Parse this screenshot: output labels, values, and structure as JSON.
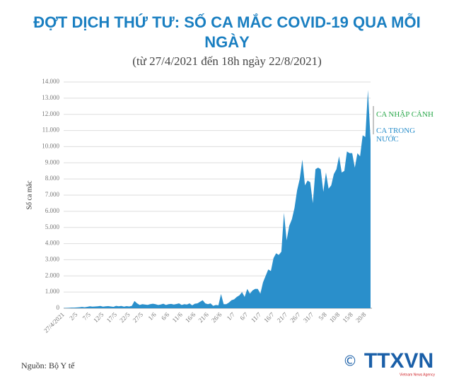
{
  "chart_data": {
    "type": "area",
    "title": "ĐỢT DỊCH THỨ TƯ: SỐ CA MẮC COVID-19 QUA MỖI NGÀY",
    "subtitle": "(từ 27/4/2021 đến 18h ngày 22/8/2021)",
    "y_label": "Số ca mắc",
    "source": "Nguồn: Bộ Y tế",
    "annotations": [
      "CA NHẬP CẢNH"
    ],
    "annotation_color": "#2aa84a",
    "categories": [
      "27/4/2021",
      null,
      null,
      null,
      null,
      "2/5",
      null,
      null,
      null,
      null,
      "7/5",
      null,
      null,
      null,
      null,
      "12/5",
      null,
      null,
      null,
      null,
      "17/5",
      null,
      null,
      null,
      null,
      "22/5",
      null,
      null,
      null,
      null,
      "27/5",
      null,
      null,
      null,
      null,
      "1/6",
      null,
      null,
      null,
      null,
      "6/6",
      null,
      null,
      null,
      null,
      "11/6",
      null,
      null,
      null,
      null,
      "16/6",
      null,
      null,
      null,
      null,
      "21/6",
      null,
      null,
      null,
      null,
      "26/6",
      null,
      null,
      null,
      null,
      "1/7",
      null,
      null,
      null,
      null,
      "6/7",
      null,
      null,
      null,
      null,
      "11/7",
      null,
      null,
      null,
      null,
      "16/7",
      null,
      null,
      null,
      null,
      "21/7",
      null,
      null,
      null,
      null,
      "26/7",
      null,
      null,
      null,
      null,
      "31/7",
      null,
      null,
      null,
      null,
      "5/8",
      null,
      null,
      null,
      null,
      "10/8",
      null,
      null,
      null,
      null,
      "15/8",
      null,
      null,
      null,
      null,
      "20/8",
      null,
      null
    ],
    "series": [
      {
        "name": "CA TRONG NƯỚC",
        "color": "#2a8fcb",
        "values": [
          10,
          20,
          30,
          40,
          40,
          50,
          60,
          80,
          60,
          90,
          120,
          100,
          110,
          120,
          140,
          100,
          120,
          130,
          110,
          90,
          150,
          120,
          140,
          100,
          130,
          110,
          150,
          450,
          300,
          200,
          250,
          230,
          210,
          250,
          280,
          250,
          200,
          230,
          280,
          200,
          250,
          270,
          230,
          260,
          300,
          200,
          250,
          230,
          300,
          180,
          280,
          300,
          400,
          500,
          300,
          250,
          300,
          150,
          200,
          180,
          880,
          250,
          250,
          350,
          500,
          550,
          700,
          800,
          1000,
          700,
          1200,
          900,
          1100,
          1200,
          1200,
          900,
          1600,
          2000,
          2400,
          2300,
          3100,
          3400,
          3300,
          3500,
          5900,
          4200,
          5100,
          5500,
          6200,
          7300,
          8000,
          9200,
          7600,
          7900,
          7800,
          6500,
          8600,
          8700,
          8600,
          7200,
          8400,
          7400,
          7600,
          8300,
          8600,
          9400,
          8400,
          8500,
          9700,
          9600,
          9600,
          8700,
          9600,
          9400,
          10700,
          10600,
          13500,
          10400
        ]
      }
    ],
    "ylim": [
      0,
      14000
    ],
    "yticks": [
      0,
      {
        "value": 1000,
        "label": "1.000"
      },
      {
        "value": 2000,
        "label": "2.000"
      },
      {
        "value": 3000,
        "label": "3.000"
      },
      {
        "value": 4000,
        "label": "4.000"
      },
      {
        "value": 5000,
        "label": "5.000"
      },
      {
        "value": 6000,
        "label": "6.000"
      },
      {
        "value": 7000,
        "label": "7.000"
      },
      {
        "value": 8000,
        "label": "8.000"
      },
      {
        "value": 9000,
        "label": "9.000"
      },
      {
        "value": 10000,
        "label": "10.000"
      },
      {
        "value": 11000,
        "label": "11.000"
      },
      {
        "value": 12000,
        "label": "12.000"
      },
      {
        "value": 13000,
        "label": "13.000"
      },
      {
        "value": 14000,
        "label": "14.000"
      }
    ],
    "grid": true
  },
  "logo": {
    "mark": "©",
    "name": "TTXVN",
    "tagline": "Vietnam News Agency"
  }
}
